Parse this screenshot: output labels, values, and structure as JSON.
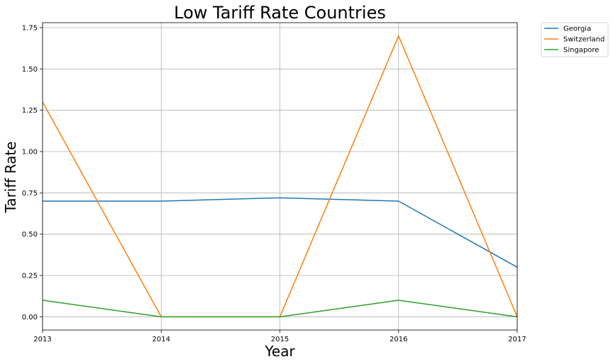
{
  "chart_data": {
    "type": "line",
    "title": "Low Tariff Rate Countries",
    "xlabel": "Year",
    "ylabel": "Tariff Rate",
    "x": [
      2013,
      2014,
      2015,
      2016,
      2017
    ],
    "x_tick_labels": [
      "2013",
      "2014",
      "2015",
      "2016",
      "2017"
    ],
    "xlim": [
      2013,
      2017
    ],
    "ylim": [
      -0.08,
      1.78
    ],
    "y_ticks": [
      0.0,
      0.25,
      0.5,
      0.75,
      1.0,
      1.25,
      1.5,
      1.75
    ],
    "y_tick_labels": [
      "0.00",
      "0.25",
      "0.50",
      "0.75",
      "1.00",
      "1.25",
      "1.50",
      "1.75"
    ],
    "grid": true,
    "legend_position": "outside top-right",
    "series": [
      {
        "name": "Georgia",
        "color": "#1f77b4",
        "values": [
          0.7,
          0.7,
          0.72,
          0.7,
          0.3
        ]
      },
      {
        "name": "Switzerland",
        "color": "#ff7f0e",
        "values": [
          1.3,
          0.0,
          0.0,
          1.7,
          0.0
        ]
      },
      {
        "name": "Singapore",
        "color": "#2ca02c",
        "values": [
          0.1,
          0.0,
          0.0,
          0.1,
          0.0
        ]
      }
    ]
  }
}
